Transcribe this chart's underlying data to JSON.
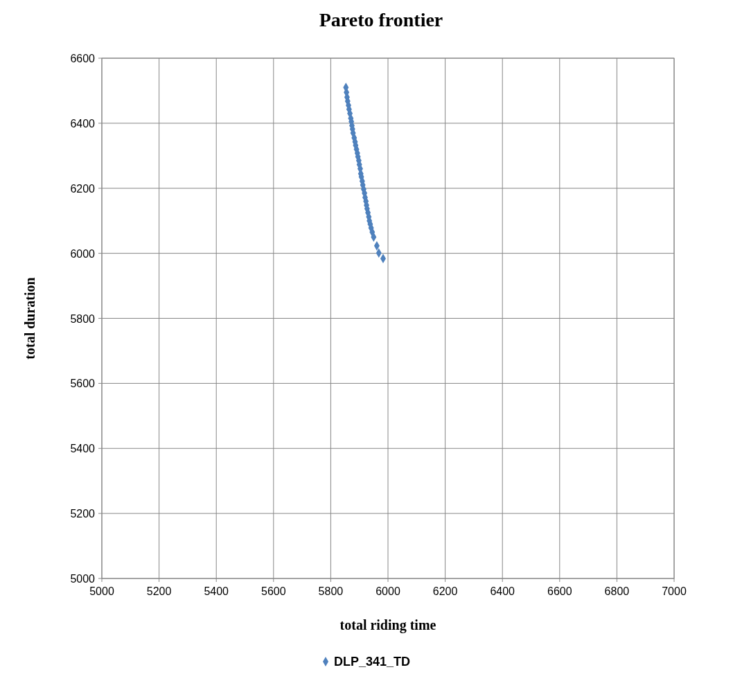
{
  "chart_data": {
    "type": "scatter",
    "title": "Pareto frontier",
    "xlabel": "total riding time",
    "ylabel": "total duration",
    "xlim": [
      5000,
      7000
    ],
    "xticks": [
      5000,
      5200,
      5400,
      5600,
      5800,
      6000,
      6200,
      6400,
      6600,
      6800,
      7000
    ],
    "ylim": [
      5000,
      6600
    ],
    "yticks": [
      5000,
      5200,
      5400,
      5600,
      5800,
      6000,
      6200,
      6400,
      6600
    ],
    "grid": true,
    "legend": "bottom",
    "marker": "diamond",
    "series": [
      {
        "name": "DLP_341_TD",
        "color": "#4f81bd",
        "x": [
          5853,
          5855,
          5857,
          5859,
          5862,
          5864,
          5867,
          5870,
          5872,
          5874,
          5876,
          5878,
          5882,
          5885,
          5887,
          5890,
          5893,
          5895,
          5898,
          5900,
          5903,
          5905,
          5907,
          5910,
          5912,
          5915,
          5918,
          5920,
          5923,
          5925,
          5927,
          5930,
          5933,
          5935,
          5938,
          5941,
          5945,
          5950,
          5961,
          5968,
          5983
        ],
        "values": [
          6510,
          6495,
          6480,
          6468,
          6455,
          6443,
          6430,
          6415,
          6405,
          6393,
          6382,
          6370,
          6355,
          6343,
          6332,
          6320,
          6308,
          6297,
          6285,
          6273,
          6260,
          6245,
          6235,
          6222,
          6210,
          6197,
          6185,
          6172,
          6160,
          6148,
          6137,
          6125,
          6112,
          6100,
          6090,
          6078,
          6065,
          6050,
          6023,
          6001,
          5984
        ]
      }
    ]
  }
}
